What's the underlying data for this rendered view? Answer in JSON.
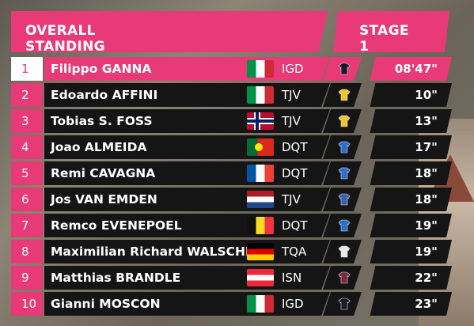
{
  "header": {
    "title": "OVERALL STANDING",
    "stage": "STAGE 1"
  },
  "rows": [
    {
      "pos": "1",
      "name": "Filippo GANNA",
      "flag": "italy",
      "team": "IGD",
      "jersey_color": "#1a1a2e",
      "time": "08'47\""
    },
    {
      "pos": "2",
      "name": "Edoardo AFFINI",
      "flag": "italy",
      "team": "TJV",
      "jersey_color": "#f3c42a",
      "time": "10\""
    },
    {
      "pos": "3",
      "name": "Tobias S. FOSS",
      "flag": "norway",
      "team": "TJV",
      "jersey_color": "#f3c42a",
      "time": "13\""
    },
    {
      "pos": "4",
      "name": "Joao ALMEIDA",
      "flag": "portugal",
      "team": "DQT",
      "jersey_color": "#2a6fc9",
      "time": "17\""
    },
    {
      "pos": "5",
      "name": "Remi CAVAGNA",
      "flag": "france",
      "team": "DQT",
      "jersey_color": "#2a6fc9",
      "time": "18\""
    },
    {
      "pos": "6",
      "name": "Jos VAN EMDEN",
      "flag": "netherlands",
      "team": "TJV",
      "jersey_color": "#3a5fb0",
      "time": "18\""
    },
    {
      "pos": "7",
      "name": "Remco EVENEPOEL",
      "flag": "belgium",
      "team": "DQT",
      "jersey_color": "#2a6fc9",
      "time": "19\""
    },
    {
      "pos": "8",
      "name": "Maximilian Richard WALSCHEID",
      "flag": "germany",
      "team": "TQA",
      "jersey_color": "#e8e8e8",
      "time": "19\""
    },
    {
      "pos": "9",
      "name": "Matthias BRANDLE",
      "flag": "austria",
      "team": "ISN",
      "jersey_color": "#7a2a3a",
      "time": "22\""
    },
    {
      "pos": "10",
      "name": "Gianni MOSCON",
      "flag": "italy",
      "team": "IGD",
      "jersey_color": "#1a1a2e",
      "time": "23\""
    }
  ],
  "colors": {
    "accent": "#e83a76",
    "row_bg": "#151515",
    "text": "#ffffff"
  }
}
